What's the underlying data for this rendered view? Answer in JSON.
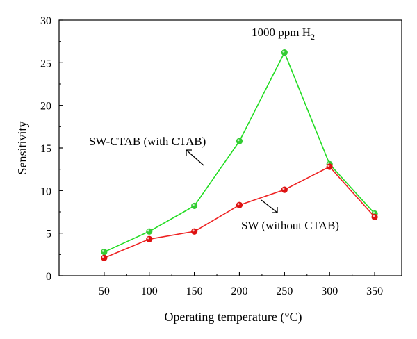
{
  "chart_data": {
    "type": "line",
    "title": "",
    "xlabel": "Operating temperature (°C)",
    "ylabel": "Sensitivity",
    "x": [
      50,
      100,
      150,
      200,
      250,
      300,
      350
    ],
    "x_ticks": [
      50,
      100,
      150,
      200,
      250,
      300,
      350
    ],
    "y_ticks": [
      0,
      5,
      10,
      15,
      20,
      25,
      30
    ],
    "xlim": [
      0,
      380
    ],
    "ylim": [
      0,
      30
    ],
    "grid": false,
    "legend": "none",
    "series": [
      {
        "name": "SW-CTAB (with CTAB)",
        "color": "#22dd22",
        "marker_color": "#33cc33",
        "values": [
          2.8,
          5.2,
          8.2,
          15.8,
          26.2,
          13.1,
          7.3
        ]
      },
      {
        "name": "SW (without CTAB)",
        "color": "#ee2222",
        "marker_color": "#dd1111",
        "values": [
          2.1,
          4.3,
          5.2,
          8.3,
          10.1,
          12.8,
          6.9
        ]
      }
    ],
    "annotations": {
      "gas_label_main": "1000 ppm H",
      "gas_label_subscript": "2",
      "ctab_label": "SW-CTAB (with CTAB)",
      "sw_label": "SW (without CTAB)"
    }
  }
}
